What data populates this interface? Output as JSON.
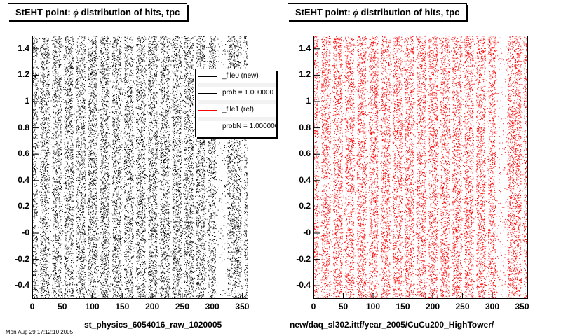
{
  "left_panel": {
    "title_prefix": "StEHT point:",
    "title_symbol": "ϕ",
    "title_suffix": "distribution of hits, tpc",
    "caption": "st_physics_6054016_raw_1020005",
    "marker_color": "#000000"
  },
  "right_panel": {
    "title_prefix": "StEHT point:",
    "title_symbol": "ϕ",
    "title_suffix": "distribution of hits, tpc",
    "caption": "new/daq_sl302.ittf/year_2005/CuCu200_HighTower/",
    "marker_color": "#ff0000"
  },
  "date_stamp": "Mon Aug 29 17:12:10 2005",
  "legend": {
    "entries": [
      {
        "label": "_file0 (new)",
        "color": "#000000"
      },
      {
        "label": "prob = 1.000000",
        "color": "#000000"
      },
      {
        "label": "_file1 (ref)",
        "color": "#ff0000"
      },
      {
        "label": "probN = 1.000000",
        "color": "#ff0000"
      }
    ]
  },
  "chart_data": [
    {
      "type": "scatter",
      "title": "StEHT point: ϕ distribution of hits, tpc",
      "xlabel": "st_physics_6054016_raw_1020005",
      "ylabel": "",
      "xlim": [
        0,
        360
      ],
      "ylim": [
        -0.5,
        1.5
      ],
      "x_ticks": [
        "0",
        "50",
        "100",
        "150",
        "200",
        "250",
        "300",
        "350"
      ],
      "y_ticks": [
        "-0.4",
        "-0.2",
        "-0",
        "0.2",
        "0.4",
        "0.6",
        "0.8",
        "1",
        "1.2",
        "1.4"
      ],
      "series": [
        {
          "name": "_file0 (new)",
          "color": "#000000"
        }
      ],
      "stripe_period_deg": 20,
      "gap_regions_deg": [
        [
          8,
          13
        ],
        [
          28,
          33
        ],
        [
          48,
          53
        ],
        [
          68,
          73
        ],
        [
          88,
          93
        ],
        [
          108,
          113
        ],
        [
          128,
          133
        ],
        [
          148,
          153
        ],
        [
          168,
          173
        ],
        [
          188,
          193
        ],
        [
          208,
          213
        ],
        [
          228,
          233
        ],
        [
          248,
          253
        ],
        [
          268,
          273
        ],
        [
          288,
          293
        ],
        [
          305,
          325
        ],
        [
          348,
          353
        ]
      ],
      "grid": false
    },
    {
      "type": "scatter",
      "title": "StEHT point: ϕ distribution of hits, tpc",
      "xlabel": "new/daq_sl302.ittf/year_2005/CuCu200_HighTower/",
      "ylabel": "",
      "xlim": [
        0,
        360
      ],
      "ylim": [
        -0.5,
        1.5
      ],
      "x_ticks": [
        "0",
        "50",
        "100",
        "150",
        "200",
        "250",
        "300",
        "350"
      ],
      "y_ticks": [
        "-0.4",
        "-0.2",
        "-0",
        "0.2",
        "0.4",
        "0.6",
        "0.8",
        "1",
        "1.2",
        "1.4"
      ],
      "series": [
        {
          "name": "_file1 (ref)",
          "color": "#ff0000"
        }
      ],
      "stripe_period_deg": 20,
      "gap_regions_deg": [
        [
          8,
          13
        ],
        [
          28,
          33
        ],
        [
          48,
          53
        ],
        [
          68,
          73
        ],
        [
          88,
          93
        ],
        [
          108,
          113
        ],
        [
          128,
          133
        ],
        [
          148,
          153
        ],
        [
          168,
          173
        ],
        [
          188,
          193
        ],
        [
          208,
          213
        ],
        [
          228,
          233
        ],
        [
          248,
          253
        ],
        [
          268,
          273
        ],
        [
          288,
          293
        ],
        [
          305,
          325
        ],
        [
          348,
          353
        ]
      ],
      "grid": false
    }
  ]
}
